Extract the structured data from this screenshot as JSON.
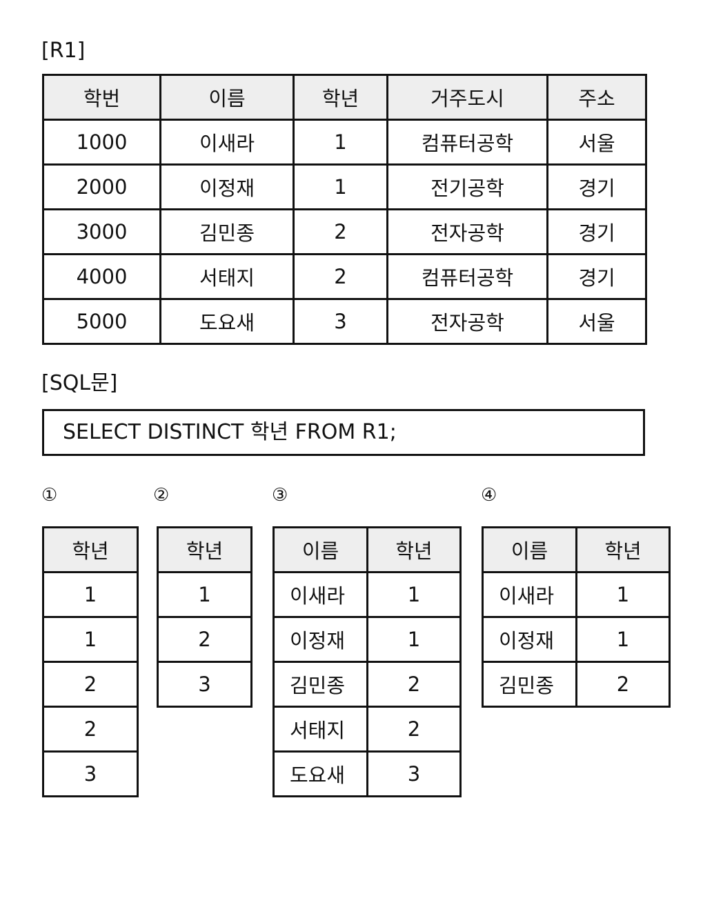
{
  "r1": {
    "label": "[R1]",
    "headers": [
      "학번",
      "이름",
      "학년",
      "거주도시",
      "주소"
    ],
    "rows": [
      [
        "1000",
        "이새라",
        "1",
        "컴퓨터공학",
        "서울"
      ],
      [
        "2000",
        "이정재",
        "1",
        "전기공학",
        "경기"
      ],
      [
        "3000",
        "김민종",
        "2",
        "전자공학",
        "경기"
      ],
      [
        "4000",
        "서태지",
        "2",
        "컴퓨터공학",
        "경기"
      ],
      [
        "5000",
        "도요새",
        "3",
        "전자공학",
        "서울"
      ]
    ]
  },
  "sql": {
    "label": "[SQL문]",
    "statement": "SELECT DISTINCT 학년 FROM R1;"
  },
  "options": [
    {
      "marker": "①",
      "headers": [
        "학년"
      ],
      "rows": [
        [
          "1"
        ],
        [
          "1"
        ],
        [
          "2"
        ],
        [
          "2"
        ],
        [
          "3"
        ]
      ]
    },
    {
      "marker": "②",
      "headers": [
        "학년"
      ],
      "rows": [
        [
          "1"
        ],
        [
          "2"
        ],
        [
          "3"
        ]
      ]
    },
    {
      "marker": "③",
      "headers": [
        "이름",
        "학년"
      ],
      "rows": [
        [
          "이새라",
          "1"
        ],
        [
          "이정재",
          "1"
        ],
        [
          "김민종",
          "2"
        ],
        [
          "서태지",
          "2"
        ],
        [
          "도요새",
          "3"
        ]
      ]
    },
    {
      "marker": "④",
      "headers": [
        "이름",
        "학년"
      ],
      "rows": [
        [
          "이새라",
          "1"
        ],
        [
          "이정재",
          "1"
        ],
        [
          "김민종",
          "2"
        ]
      ]
    }
  ]
}
